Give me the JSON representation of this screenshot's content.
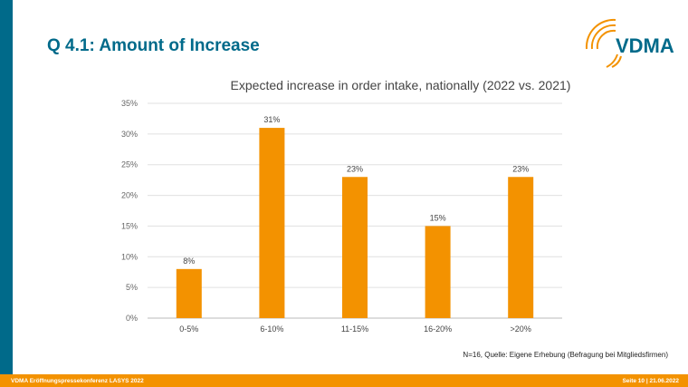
{
  "slide": {
    "title": "Q 4.1: Amount of Increase",
    "logo_text": "VDMA",
    "note": "N=16, Quelle: Eigene Erhebung (Befragung bei Mitgliedsfirmen)",
    "footer_left": "VDMA Eröffnungspressekonferenz LASYS 2022",
    "footer_right": "Seite 10 | 21.06.2022"
  },
  "colors": {
    "accent": "#006a8a",
    "bar": "#f39200",
    "footer": "#f39200"
  },
  "chart_data": {
    "type": "bar",
    "title": "Expected increase in order intake, nationally (2022 vs. 2021)",
    "categories": [
      "0-5%",
      "6-10%",
      "11-15%",
      "16-20%",
      ">20%"
    ],
    "values": [
      8,
      31,
      23,
      15,
      23
    ],
    "data_labels": [
      "8%",
      "31%",
      "23%",
      "15%",
      "23%"
    ],
    "ylim": [
      0,
      35
    ],
    "yticks": [
      0,
      5,
      10,
      15,
      20,
      25,
      30,
      35
    ],
    "ytick_labels": [
      "0%",
      "5%",
      "10%",
      "15%",
      "20%",
      "25%",
      "30%",
      "35%"
    ],
    "grid": true,
    "legend": "none"
  }
}
